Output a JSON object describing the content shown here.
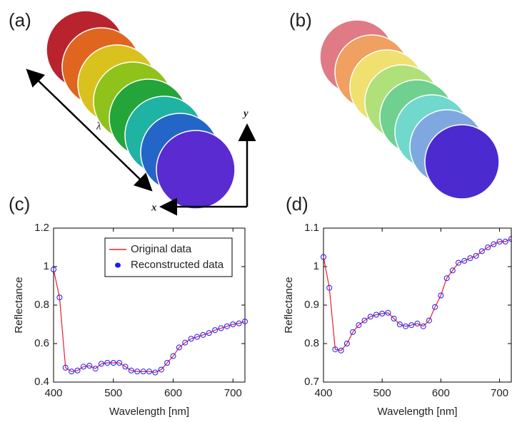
{
  "figure": {
    "panels": [
      "(a)",
      "(b)"
    ],
    "lambda": "λ",
    "x_axis": "x",
    "y_axis": "y"
  },
  "chart_data": [
    {
      "type": "line",
      "label": "(c)",
      "xlabel": "Wavelength [nm]",
      "ylabel": "Reflectance",
      "x": [
        400,
        410,
        420,
        430,
        440,
        450,
        460,
        470,
        480,
        490,
        500,
        510,
        520,
        530,
        540,
        550,
        560,
        570,
        580,
        590,
        600,
        610,
        620,
        630,
        640,
        650,
        660,
        670,
        680,
        690,
        700,
        710,
        720
      ],
      "xlim": [
        400,
        720
      ],
      "xticks": [
        400,
        500,
        600,
        700
      ],
      "ylim": [
        0.4,
        1.2
      ],
      "yticks": [
        0.4,
        0.6,
        0.8,
        1,
        1.2
      ],
      "legend": "upper right",
      "series": [
        {
          "name": "Original data",
          "color": "#e8202a",
          "marker": "line",
          "values": [
            0.985,
            0.84,
            0.475,
            0.455,
            0.46,
            0.48,
            0.485,
            0.47,
            0.495,
            0.5,
            0.5,
            0.5,
            0.48,
            0.46,
            0.455,
            0.455,
            0.455,
            0.45,
            0.465,
            0.5,
            0.535,
            0.58,
            0.605,
            0.625,
            0.635,
            0.645,
            0.655,
            0.67,
            0.68,
            0.69,
            0.7,
            0.705,
            0.715
          ]
        },
        {
          "name": "Reconstructed data",
          "color": "#1a1aff",
          "marker": "circle",
          "values": [
            0.985,
            0.84,
            0.475,
            0.455,
            0.46,
            0.48,
            0.485,
            0.47,
            0.495,
            0.5,
            0.5,
            0.5,
            0.48,
            0.46,
            0.455,
            0.455,
            0.455,
            0.45,
            0.465,
            0.5,
            0.535,
            0.58,
            0.605,
            0.625,
            0.635,
            0.645,
            0.655,
            0.67,
            0.68,
            0.69,
            0.7,
            0.705,
            0.715
          ]
        }
      ]
    },
    {
      "type": "line",
      "label": "(d)",
      "xlabel": "Wavelength [nm]",
      "ylabel": "Reflectance",
      "x": [
        400,
        410,
        420,
        430,
        440,
        450,
        460,
        470,
        480,
        490,
        500,
        510,
        520,
        530,
        540,
        550,
        560,
        570,
        580,
        590,
        600,
        610,
        620,
        630,
        640,
        650,
        660,
        670,
        680,
        690,
        700,
        710,
        720
      ],
      "xlim": [
        400,
        720
      ],
      "xticks": [
        400,
        500,
        600,
        700
      ],
      "ylim": [
        0.7,
        1.1
      ],
      "yticks": [
        0.7,
        0.8,
        0.9,
        1,
        1.1
      ],
      "series": [
        {
          "color": "#e8202a",
          "marker": "line",
          "values": [
            1.025,
            0.945,
            0.785,
            0.782,
            0.8,
            0.83,
            0.848,
            0.86,
            0.87,
            0.875,
            0.878,
            0.88,
            0.865,
            0.85,
            0.845,
            0.848,
            0.852,
            0.845,
            0.86,
            0.895,
            0.925,
            0.97,
            0.99,
            1.01,
            1.015,
            1.022,
            1.028,
            1.04,
            1.05,
            1.058,
            1.065,
            1.065,
            1.072
          ]
        },
        {
          "color": "#1a1aff",
          "marker": "circle",
          "values": [
            1.025,
            0.945,
            0.785,
            0.782,
            0.8,
            0.83,
            0.848,
            0.86,
            0.87,
            0.875,
            0.878,
            0.88,
            0.865,
            0.85,
            0.845,
            0.848,
            0.852,
            0.845,
            0.86,
            0.895,
            0.925,
            0.97,
            0.99,
            1.01,
            1.015,
            1.022,
            1.028,
            1.04,
            1.05,
            1.058,
            1.065,
            1.065,
            1.072
          ]
        }
      ]
    }
  ]
}
